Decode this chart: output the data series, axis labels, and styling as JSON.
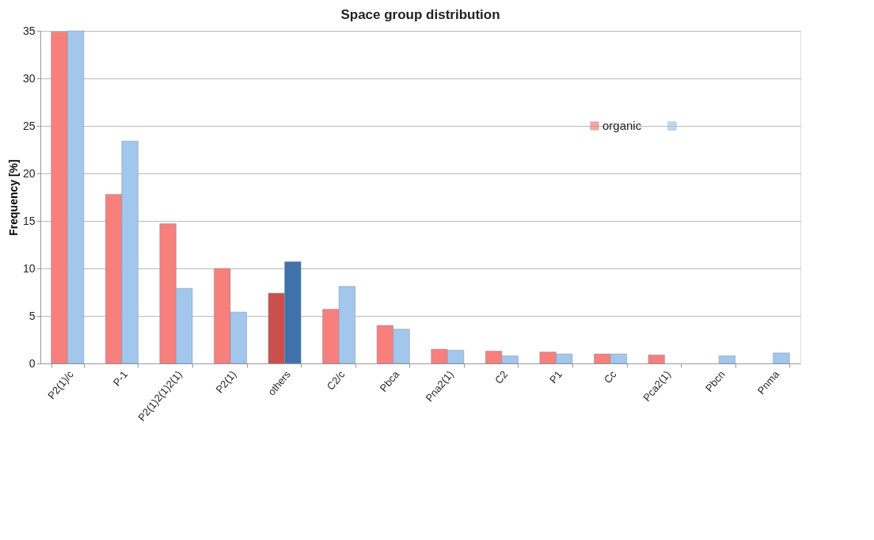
{
  "chart_data": {
    "type": "bar",
    "title": "Space group distribution",
    "ylabel": "Frequency [%]",
    "categories": [
      "P2(1)/c",
      "P-1",
      "P2(1)2(1)2(1)",
      "P2(1)",
      "others",
      "C2/c",
      "Pbca",
      "Pna2(1)",
      "C2",
      "P1",
      "Cc",
      "Pca2(1)",
      "Pbcn",
      "Pnma"
    ],
    "series": [
      {
        "name": "organic",
        "color": "#f77f7c",
        "colors": [
          "#f77f7c",
          "#f77f7c",
          "#f77f7c",
          "#f77f7c",
          "#c9504d",
          "#f77f7c",
          "#f77f7c",
          "#f77f7c",
          "#f77f7c",
          "#f77f7c",
          "#f77f7c",
          "#f77f7c",
          "#f77f7c",
          "#f77f7c"
        ],
        "values": [
          34.9,
          17.8,
          14.7,
          10.0,
          7.4,
          5.7,
          4.0,
          1.5,
          1.3,
          1.2,
          1.0,
          0.9,
          null,
          null
        ]
      },
      {
        "color": "#a3c6ec",
        "colors": [
          "#a3c6ec",
          "#a3c6ec",
          "#a3c6ec",
          "#a3c6ec",
          "#3f72a8",
          "#a3c6ec",
          "#a3c6ec",
          "#a3c6ec",
          "#a3c6ec",
          "#a3c6ec",
          "#a3c6ec",
          "#a3c6ec",
          "#a3c6ec",
          "#a3c6ec"
        ],
        "values": [
          35.0,
          23.4,
          7.9,
          5.4,
          10.7,
          8.1,
          3.6,
          1.4,
          0.8,
          1.0,
          1.0,
          null,
          0.8,
          1.1
        ]
      }
    ],
    "ylim": [
      0,
      35
    ],
    "yticks": [
      0,
      5,
      10,
      15,
      20,
      25,
      30,
      35
    ],
    "grid": "y",
    "legend": "right"
  }
}
